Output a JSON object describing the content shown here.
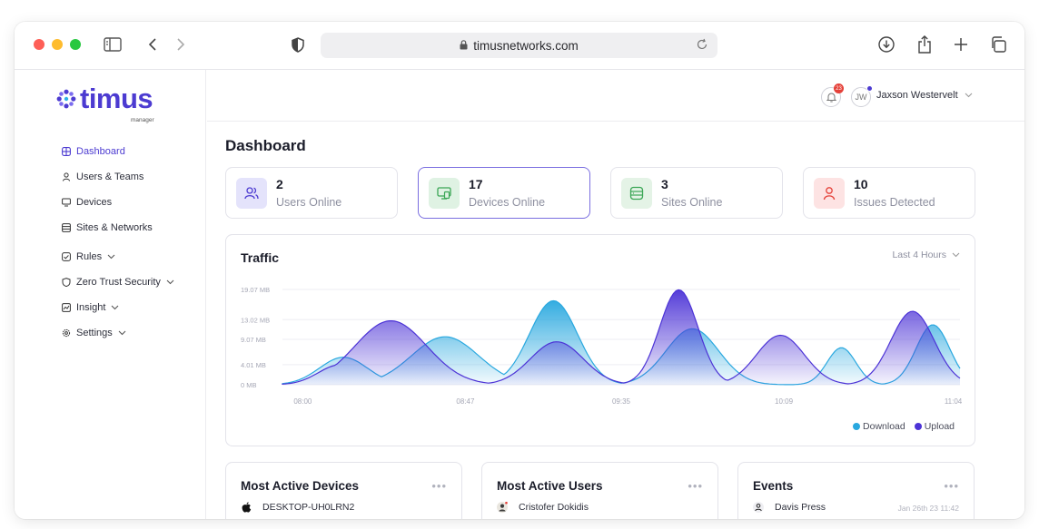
{
  "browser": {
    "url": "timusnetworks.com"
  },
  "logo": {
    "word": "timus",
    "sub": "manager"
  },
  "sidebar": {
    "items": [
      {
        "label": "Dashboard"
      },
      {
        "label": "Users & Teams"
      },
      {
        "label": "Devices"
      },
      {
        "label": "Sites & Networks"
      },
      {
        "label": "Rules"
      },
      {
        "label": "Zero Trust Security"
      },
      {
        "label": "Insight"
      },
      {
        "label": "Settings"
      }
    ]
  },
  "header": {
    "notification_count": "23",
    "avatar_initials": "JW",
    "user_name": "Jaxson Westervelt"
  },
  "page": {
    "title": "Dashboard"
  },
  "stats": [
    {
      "value": "2",
      "label": "Users Online"
    },
    {
      "value": "17",
      "label": "Devices Online"
    },
    {
      "value": "3",
      "label": "Sites Online"
    },
    {
      "value": "10",
      "label": "Issues Detected"
    }
  ],
  "traffic": {
    "title": "Traffic",
    "range": "Last 4 Hours"
  },
  "chart_data": {
    "type": "area",
    "title": "Traffic",
    "y_ticks": [
      "19.07 MB",
      "13.02 MB",
      "9.07 MB",
      "4.01 MB",
      "0 MB"
    ],
    "x_ticks": [
      "08:00",
      "08:47",
      "09:35",
      "10:09",
      "11:04"
    ],
    "ylim": [
      0,
      19.07
    ],
    "grid": true,
    "legend": "bottom-right",
    "series": [
      {
        "name": "Download",
        "color": "#29a8df",
        "peaks": [
          {
            "x": 0.12,
            "y": 5.5
          },
          {
            "x": 0.33,
            "y": 9.6
          },
          {
            "x": 0.54,
            "y": 16.8
          },
          {
            "x": 0.76,
            "y": 11.2
          },
          {
            "x": 0.75,
            "y": 6.2
          },
          {
            "x": 0.86,
            "y": 7.4
          },
          {
            "x": 1.0,
            "y": 12.0
          }
        ]
      },
      {
        "name": "Upload",
        "color": "#4c33d6",
        "peaks": [
          {
            "x": 0.1,
            "y": 4.0
          },
          {
            "x": 0.22,
            "y": 12.8
          },
          {
            "x": 0.54,
            "y": 8.6
          },
          {
            "x": 0.76,
            "y": 19.0
          },
          {
            "x": 0.75,
            "y": 9.9
          },
          {
            "x": 0.9,
            "y": 14.7
          }
        ]
      }
    ]
  },
  "panels": [
    {
      "title": "Most Active Devices",
      "row_label": "DESKTOP-UH0LRN2"
    },
    {
      "title": "Most Active Users",
      "row_label": "Cristofer Dokidis"
    },
    {
      "title": "Events",
      "row_label": "Davis Press",
      "row_time": "Jan 26th 23 11:42"
    }
  ],
  "colors": {
    "accent": "#4c3bd1",
    "download": "#29a8df",
    "upload": "#4c33d6",
    "danger": "#e5423a"
  }
}
